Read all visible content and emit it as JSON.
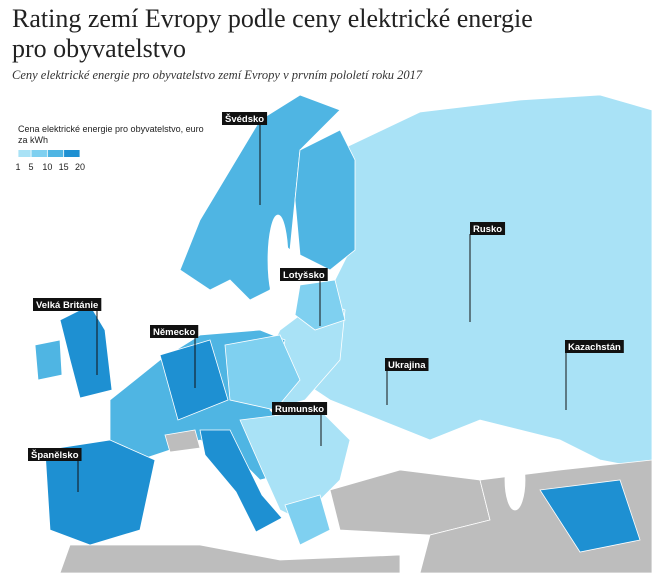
{
  "title": "Rating zemí Evropy podle ceny elektrické energie pro obyvatelstvo",
  "subtitle": "Ceny elektrické energie pro obyvatelstvo zemí Evropy v prvním pololetí roku 2017",
  "legend": {
    "title": "Cena elektrické energie pro obyvatelstvo, euro za kWh",
    "ticks": [
      1,
      5,
      10,
      15,
      20
    ],
    "colors": [
      "#a9e2f6",
      "#7fd0f0",
      "#4fb5e3",
      "#1e90d2"
    ]
  },
  "labels": [
    "Švédsko",
    "Rusko",
    "Lotyšsko",
    "Velká Británie",
    "Německo",
    "Ukrajina",
    "Kazachstán",
    "Rumunsko",
    "Španělsko"
  ]
}
